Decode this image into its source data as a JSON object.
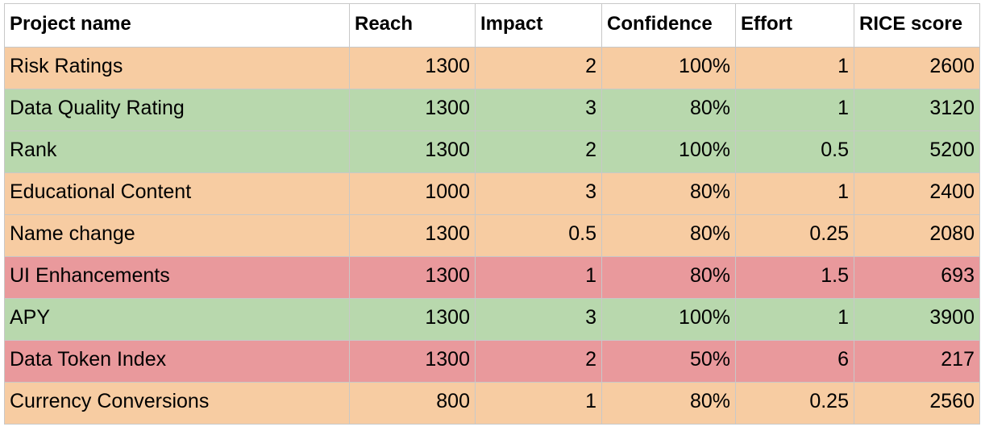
{
  "colors": {
    "orange": "#f7cca2",
    "green": "#b8d8ad",
    "red": "#e9999c",
    "header_bg": "#ffffff",
    "grid": "#c8c8c8"
  },
  "table": {
    "headers": [
      "Project name",
      "Reach",
      "Impact",
      "Confidence",
      "Effort",
      "RICE score"
    ],
    "rows": [
      {
        "cells": [
          "Risk Ratings",
          "1300",
          "2",
          "100%",
          "1",
          "2600"
        ],
        "color": "orange"
      },
      {
        "cells": [
          "Data Quality Rating",
          "1300",
          "3",
          "80%",
          "1",
          "3120"
        ],
        "color": "green"
      },
      {
        "cells": [
          "Rank",
          "1300",
          "2",
          "100%",
          "0.5",
          "5200"
        ],
        "color": "green"
      },
      {
        "cells": [
          "Educational Content",
          "1000",
          "3",
          "80%",
          "1",
          "2400"
        ],
        "color": "orange"
      },
      {
        "cells": [
          "Name change",
          "1300",
          "0.5",
          "80%",
          "0.25",
          "2080"
        ],
        "color": "orange"
      },
      {
        "cells": [
          "UI Enhancements",
          "1300",
          "1",
          "80%",
          "1.5",
          "693"
        ],
        "color": "red"
      },
      {
        "cells": [
          "APY",
          "1300",
          "3",
          "100%",
          "1",
          "3900"
        ],
        "color": "green"
      },
      {
        "cells": [
          "Data Token Index",
          "1300",
          "2",
          "50%",
          "6",
          "217"
        ],
        "color": "red"
      },
      {
        "cells": [
          "Currency Conversions",
          "800",
          "1",
          "80%",
          "0.25",
          "2560"
        ],
        "color": "orange"
      }
    ]
  }
}
